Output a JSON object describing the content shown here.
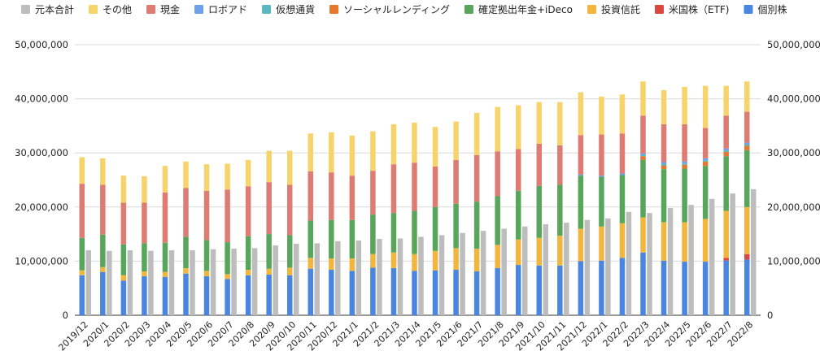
{
  "chart_data": {
    "type": "bar",
    "stacked": true,
    "title": "",
    "xlabel": "",
    "ylabel": "",
    "ylim": [
      0,
      50000000
    ],
    "yticks": [
      0,
      10000000,
      20000000,
      30000000,
      40000000,
      50000000
    ],
    "ytick_labels": [
      "0",
      "10,000,000",
      "20,000,000",
      "30,000,000",
      "40,000,000",
      "50,000,000"
    ],
    "secondary_axis": true,
    "grid": true,
    "legend_position": "top",
    "categories": [
      "2019/12",
      "2020/1",
      "2020/2",
      "2020/3",
      "2020/4",
      "2020/5",
      "2020/6",
      "2020/7",
      "2020/8",
      "2020/9",
      "2020/10",
      "2020/11",
      "2020/12",
      "2021/1",
      "2021/2",
      "2021/3",
      "2021/4",
      "2021/5",
      "2021/6",
      "2021/7",
      "2021/8",
      "2021/9",
      "2021/10",
      "2021/11",
      "2021/12",
      "2022/1",
      "2022/2",
      "2022/3",
      "2022/4",
      "2022/5",
      "2022/6",
      "2022/7",
      "2022/8"
    ],
    "legend_order": [
      "元本合計",
      "その他",
      "現金",
      "ロボアド",
      "仮想通貨",
      "ソーシャルレンディング",
      "確定拠出年金+iDeco",
      "投資信託",
      "米国株（ETF)",
      "個別株"
    ],
    "stack_order": [
      "個別株",
      "米国株（ETF)",
      "投資信託",
      "確定拠出年金+iDeco",
      "ソーシャルレンディング",
      "仮想通貨",
      "ロボアド",
      "現金",
      "その他"
    ],
    "colors": {
      "元本合計": "#BDBDBD",
      "その他": "#F7D46B",
      "現金": "#DE7C74",
      "ロボアド": "#6F9EEB",
      "仮想通貨": "#5AB7C1",
      "ソーシャルレンディング": "#E8772E",
      "確定拠出年金+iDeco": "#58A65C",
      "投資信託": "#F2B63F",
      "米国株（ETF)": "#D9473F",
      "個別株": "#4A86E0"
    },
    "series": [
      {
        "name": "個別株",
        "values": [
          7400000,
          8000000,
          6400000,
          7200000,
          7100000,
          7700000,
          7200000,
          6700000,
          7400000,
          7500000,
          7400000,
          8600000,
          8400000,
          8200000,
          8800000,
          8700000,
          8200000,
          8300000,
          8400000,
          8100000,
          8700000,
          9300000,
          9200000,
          9200000,
          10000000,
          10100000,
          10600000,
          11600000,
          10100000,
          9900000,
          9900000,
          10100000,
          10300000
        ]
      },
      {
        "name": "米国株（ETF)",
        "values": [
          0,
          0,
          0,
          0,
          0,
          0,
          0,
          0,
          0,
          0,
          0,
          0,
          0,
          0,
          0,
          0,
          0,
          0,
          0,
          0,
          0,
          0,
          0,
          0,
          0,
          0,
          0,
          0,
          0,
          0,
          0,
          500000,
          1000000
        ]
      },
      {
        "name": "投資信託",
        "values": [
          900000,
          900000,
          1000000,
          900000,
          900000,
          1000000,
          1000000,
          900000,
          1000000,
          1100000,
          1400000,
          2000000,
          2100000,
          2300000,
          2500000,
          2900000,
          3100000,
          3600000,
          4000000,
          4200000,
          4300000,
          4700000,
          5100000,
          5500000,
          6000000,
          6300000,
          6400000,
          6500000,
          7100000,
          7300000,
          7900000,
          8700000,
          8700000
        ]
      },
      {
        "name": "確定拠出年金+iDeco",
        "values": [
          6000000,
          6000000,
          5700000,
          5200000,
          5400000,
          5800000,
          5700000,
          5900000,
          6200000,
          6400000,
          6000000,
          6900000,
          7100000,
          7100000,
          7300000,
          7300000,
          8000000,
          8100000,
          8200000,
          8700000,
          9000000,
          9000000,
          9600000,
          9400000,
          9800000,
          9200000,
          8900000,
          10600000,
          9800000,
          9900000,
          9800000,
          10100000,
          10500000
        ]
      },
      {
        "name": "ソーシャルレンディング",
        "values": [
          0,
          0,
          0,
          0,
          0,
          0,
          0,
          0,
          0,
          0,
          0,
          0,
          0,
          0,
          0,
          0,
          0,
          0,
          0,
          0,
          0,
          0,
          0,
          0,
          0,
          0,
          0,
          700000,
          700000,
          700000,
          800000,
          800000,
          800000
        ]
      },
      {
        "name": "仮想通貨",
        "values": [
          0,
          0,
          0,
          0,
          0,
          0,
          0,
          0,
          0,
          0,
          0,
          0,
          0,
          0,
          0,
          0,
          0,
          0,
          0,
          0,
          0,
          0,
          0,
          0,
          0,
          0,
          0,
          200000,
          300000,
          300000,
          300000,
          300000,
          300000
        ]
      },
      {
        "name": "ロボアド",
        "values": [
          0,
          0,
          0,
          0,
          0,
          0,
          0,
          0,
          0,
          0,
          0,
          0,
          0,
          0,
          0,
          0,
          0,
          0,
          0,
          0,
          0,
          0,
          0,
          0,
          200000,
          200000,
          300000,
          300000,
          300000,
          300000,
          300000,
          300000,
          300000
        ]
      },
      {
        "name": "現金",
        "values": [
          10000000,
          9200000,
          7700000,
          7500000,
          9300000,
          9000000,
          9100000,
          9700000,
          9200000,
          9600000,
          9300000,
          9100000,
          8800000,
          8200000,
          8100000,
          9000000,
          8900000,
          7500000,
          8100000,
          8600000,
          8300000,
          7700000,
          7800000,
          7300000,
          7300000,
          7600000,
          7400000,
          7000000,
          7000000,
          6900000,
          5600000,
          6100000,
          5700000
        ]
      },
      {
        "name": "その他",
        "values": [
          4900000,
          4900000,
          5000000,
          4900000,
          4900000,
          4900000,
          4900000,
          4800000,
          4900000,
          5800000,
          6300000,
          7000000,
          7400000,
          7400000,
          7300000,
          7400000,
          7400000,
          7300000,
          7100000,
          7800000,
          8200000,
          8100000,
          7700000,
          8000000,
          7900000,
          7000000,
          7200000,
          6300000,
          6300000,
          6900000,
          7800000,
          5500000,
          5600000
        ]
      },
      {
        "name": "元本合計",
        "values": [
          12000000,
          11900000,
          12000000,
          11900000,
          12000000,
          12000000,
          12200000,
          12300000,
          12400000,
          12900000,
          13200000,
          13300000,
          13700000,
          13800000,
          14100000,
          14200000,
          14500000,
          14800000,
          15200000,
          15600000,
          16000000,
          16400000,
          16800000,
          17100000,
          17600000,
          17900000,
          19100000,
          18900000,
          19800000,
          20400000,
          21500000,
          22500000,
          23300000
        ]
      }
    ]
  }
}
